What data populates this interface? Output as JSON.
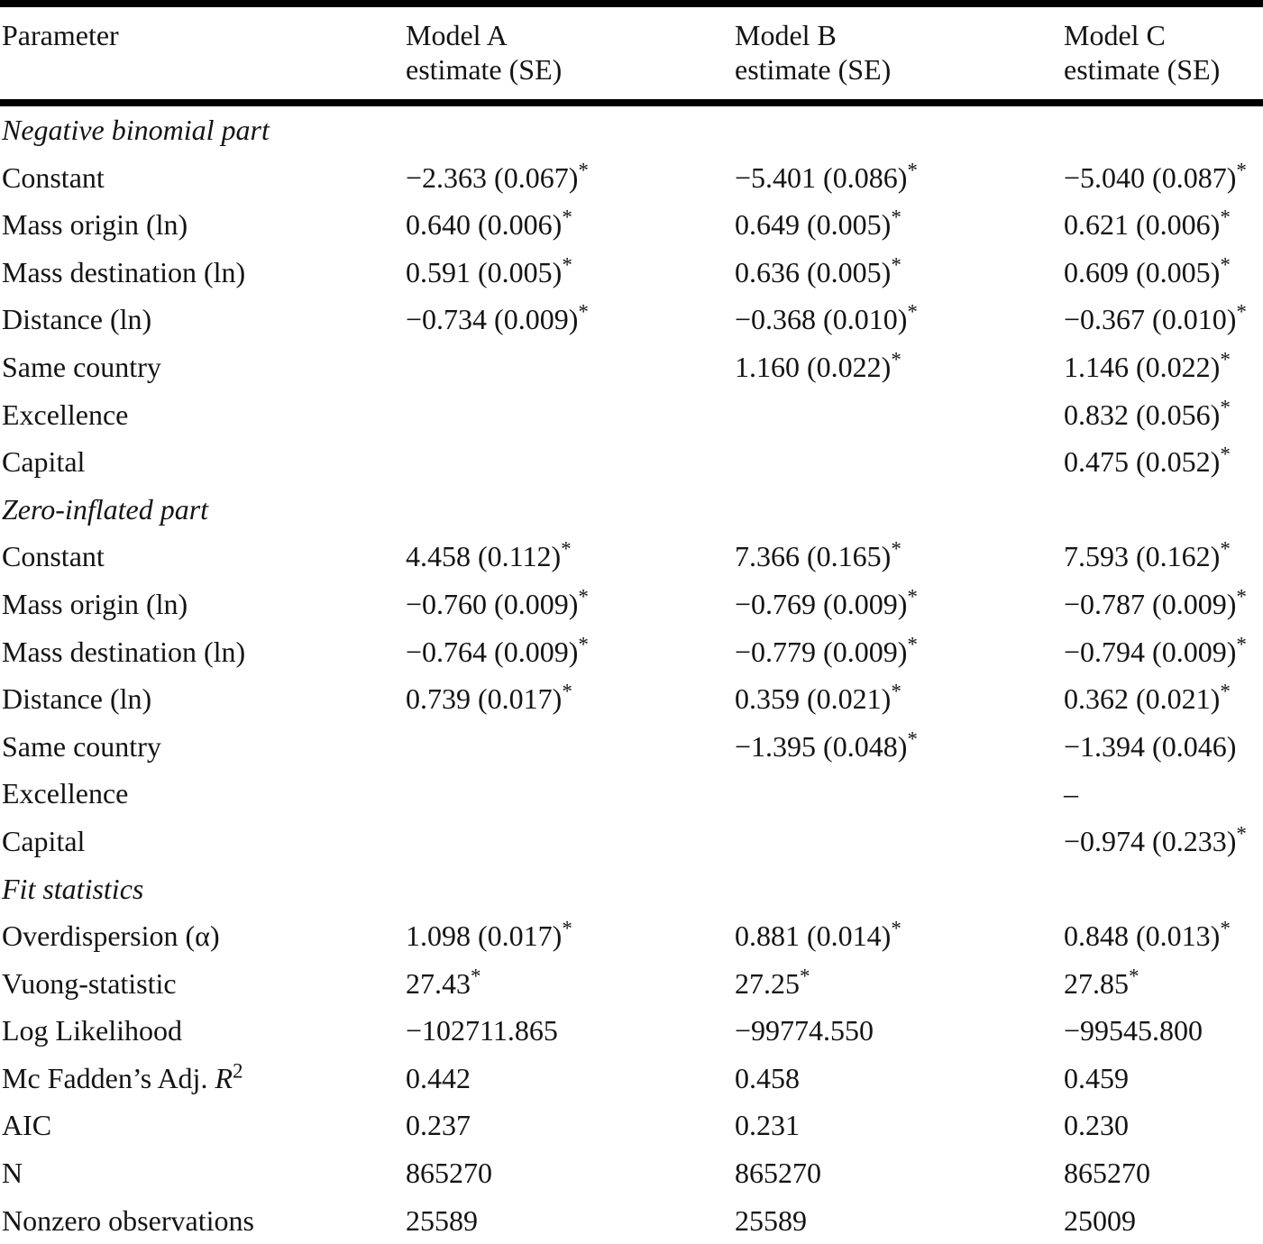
{
  "header": {
    "parameter_label": "Parameter",
    "models": [
      {
        "name": "Model A",
        "sub": "estimate (SE)"
      },
      {
        "name": "Model B",
        "sub": "estimate (SE)"
      },
      {
        "name": "Model C",
        "sub": "estimate (SE)"
      }
    ]
  },
  "rows": [
    {
      "type": "section",
      "label": "Negative binomial part"
    },
    {
      "type": "data",
      "label": "Constant",
      "a": "−2.363 (0.067)*",
      "b": "−5.401 (0.086)*",
      "c": "−5.040 (0.087)*"
    },
    {
      "type": "data",
      "label": "Mass origin (ln)",
      "a": "0.640 (0.006)*",
      "b": "0.649 (0.005)*",
      "c": "0.621 (0.006)*"
    },
    {
      "type": "data",
      "label": "Mass destination (ln)",
      "a": "0.591 (0.005)*",
      "b": "0.636 (0.005)*",
      "c": "0.609 (0.005)*"
    },
    {
      "type": "data",
      "label": "Distance (ln)",
      "a": "−0.734 (0.009)*",
      "b": "−0.368 (0.010)*",
      "c": "−0.367 (0.010)*"
    },
    {
      "type": "data",
      "label": "Same country",
      "a": "",
      "b": "1.160 (0.022)*",
      "c": "1.146 (0.022)*"
    },
    {
      "type": "data",
      "label": "Excellence",
      "a": "",
      "b": "",
      "c": "0.832 (0.056)*"
    },
    {
      "type": "data",
      "label": "Capital",
      "a": "",
      "b": "",
      "c": "0.475 (0.052)*"
    },
    {
      "type": "section",
      "label": "Zero-inflated part"
    },
    {
      "type": "data",
      "label": "Constant",
      "a": "4.458 (0.112)*",
      "b": "7.366 (0.165)*",
      "c": "7.593 (0.162)*"
    },
    {
      "type": "data",
      "label": "Mass origin (ln)",
      "a": "−0.760 (0.009)*",
      "b": "−0.769 (0.009)*",
      "c": "−0.787 (0.009)*"
    },
    {
      "type": "data",
      "label": "Mass destination (ln)",
      "a": "−0.764 (0.009)*",
      "b": "−0.779 (0.009)*",
      "c": "−0.794 (0.009)*"
    },
    {
      "type": "data",
      "label": "Distance (ln)",
      "a": "0.739 (0.017)*",
      "b": "0.359 (0.021)*",
      "c": "0.362 (0.021)*"
    },
    {
      "type": "data",
      "label": "Same country",
      "a": "",
      "b": "−1.395 (0.048)*",
      "c": "−1.394 (0.046)"
    },
    {
      "type": "data",
      "label": "Excellence",
      "a": "",
      "b": "",
      "c": "–"
    },
    {
      "type": "data",
      "label": "Capital",
      "a": "",
      "b": "",
      "c": "−0.974 (0.233)*"
    },
    {
      "type": "section",
      "label": "Fit statistics"
    },
    {
      "type": "data",
      "label": "Overdispersion (α)",
      "a": "1.098 (0.017)*",
      "b": "0.881 (0.014)*",
      "c": "0.848 (0.013)*"
    },
    {
      "type": "data",
      "label": "Vuong-statistic",
      "a": "27.43*",
      "b": "27.25*",
      "c": "27.85*"
    },
    {
      "type": "data",
      "label": "Log Likelihood",
      "a": "−102711.865",
      "b": "−99774.550",
      "c": "−99545.800"
    },
    {
      "type": "data",
      "label": "Mc Fadden’s Adj.",
      "label_math": "R",
      "label_sup": "2",
      "a": "0.442",
      "b": "0.458",
      "c": "0.459"
    },
    {
      "type": "data",
      "label": "AIC",
      "a": "0.237",
      "b": "0.231",
      "c": "0.230"
    },
    {
      "type": "data",
      "label": "N",
      "a": "865270",
      "b": "865270",
      "c": "865270"
    },
    {
      "type": "data",
      "label": "Nonzero observations",
      "a": "25589",
      "b": "25589",
      "c": "25009"
    }
  ],
  "colors": {
    "rule": "#000000",
    "text": "#141414",
    "background": "#ffffff"
  }
}
